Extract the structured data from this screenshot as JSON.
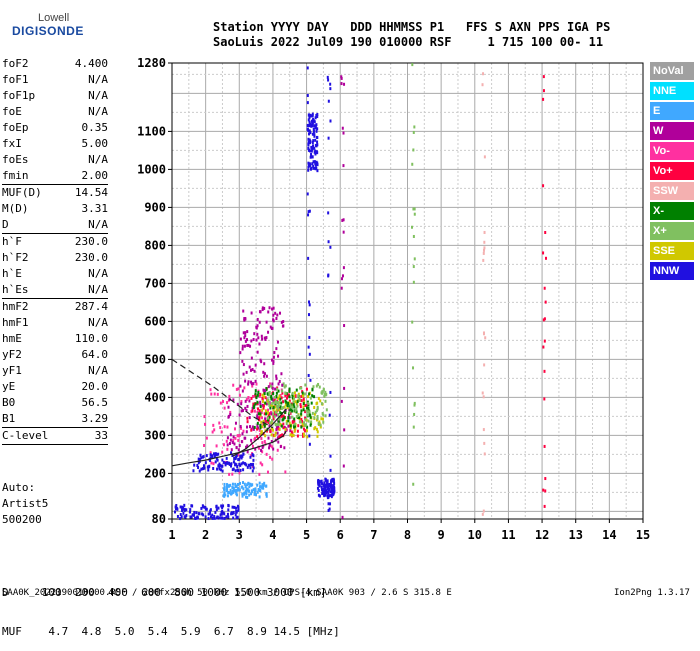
{
  "logo": {
    "top": "Lowell",
    "bottom": "DIGISONDE"
  },
  "header": {
    "line1": "Station YYYY DAY   DDD HHMMSS P1   FFS S AXN PPS IGA PS",
    "line2": "SaoLuis 2022 Jul09 190 010000 RSF     1 715 100 00- 11"
  },
  "params": [
    {
      "k": "foF2",
      "v": "4.400"
    },
    {
      "k": "foF1",
      "v": "N/A"
    },
    {
      "k": "foF1p",
      "v": "N/A"
    },
    {
      "k": "foE",
      "v": "N/A"
    },
    {
      "k": "foEp",
      "v": "0.35"
    },
    {
      "k": "fxI",
      "v": "5.00"
    },
    {
      "k": "foEs",
      "v": "N/A"
    },
    {
      "k": "fmin",
      "v": "2.00"
    },
    {
      "sep": true
    },
    {
      "k": "MUF(D)",
      "v": "14.54"
    },
    {
      "k": "M(D)",
      "v": "3.31"
    },
    {
      "k": "D",
      "v": "N/A"
    },
    {
      "sep": true
    },
    {
      "k": "h`F",
      "v": "230.0"
    },
    {
      "k": "h`F2",
      "v": "230.0"
    },
    {
      "k": "h`E",
      "v": "N/A"
    },
    {
      "k": "h`Es",
      "v": "N/A"
    },
    {
      "sep": true
    },
    {
      "k": "hmF2",
      "v": "287.4"
    },
    {
      "k": "hmF1",
      "v": "N/A"
    },
    {
      "k": "hmE",
      "v": "110.0"
    },
    {
      "k": "yF2",
      "v": "64.0"
    },
    {
      "k": "yF1",
      "v": "N/A"
    },
    {
      "k": "yE",
      "v": "20.0"
    },
    {
      "k": "B0",
      "v": "56.5"
    },
    {
      "k": "B1",
      "v": "3.29"
    },
    {
      "sep": true
    },
    {
      "k": "C-level",
      "v": "33"
    },
    {
      "sep": true
    }
  ],
  "auto": {
    "line1": "Auto:",
    "line2": "Artist5",
    "line3": "500200"
  },
  "legend": [
    {
      "label": "NoVal",
      "color": "#a0a0a0"
    },
    {
      "label": "NNE",
      "color": "#00e0ff"
    },
    {
      "label": "E",
      "color": "#40a8ff"
    },
    {
      "label": "W",
      "color": "#b0009a"
    },
    {
      "label": "Vo-",
      "color": "#ff30a0"
    },
    {
      "label": "Vo+",
      "color": "#ff0040"
    },
    {
      "label": "SSW",
      "color": "#f4b0b0"
    },
    {
      "label": "X-",
      "color": "#008000"
    },
    {
      "label": "X+",
      "color": "#80c060"
    },
    {
      "label": "SSE",
      "color": "#d0c800"
    },
    {
      "label": "NNW",
      "color": "#2010e0"
    }
  ],
  "bottom_table": {
    "d_row": "D     100  200  400  600  800 1000 1500 3000 [km]",
    "muf_row": "MUF    4.7  4.8  5.0  5.4  5.9  6.7  8.9 14.5 [MHz]"
  },
  "footer": {
    "left": "SAA0K_2022190010000.RSF / 280fx256h 50 kHz 5.0 km / DPS-4 SAA0K 903 / 2.6 S 315.8 E",
    "right": "Ion2Png 1.3.17"
  },
  "chart_data": {
    "type": "scatter",
    "xlim": [
      1,
      15
    ],
    "ylim": [
      80,
      1280
    ],
    "x_ticks": [
      1,
      2,
      3,
      4,
      5,
      6,
      7,
      8,
      9,
      10,
      11,
      12,
      13,
      14,
      15
    ],
    "y_ticks": [
      80,
      200,
      300,
      400,
      500,
      600,
      700,
      800,
      900,
      1000,
      1100,
      1280
    ],
    "grid": true,
    "clusters": [
      {
        "f": [
          1.9,
          4.4
        ],
        "h": [
          200,
          440
        ],
        "color": "#ff30a0"
      },
      {
        "f": [
          2.6,
          4.5
        ],
        "h": [
          260,
          400
        ],
        "color": "#b0009a"
      },
      {
        "f": [
          3.2,
          5.0
        ],
        "h": [
          300,
          430
        ],
        "color": "#ff0040"
      },
      {
        "f": [
          3.6,
          5.5
        ],
        "h": [
          300,
          420
        ],
        "color": "#d0c800"
      },
      {
        "f": [
          3.4,
          5.2
        ],
        "h": [
          320,
          430
        ],
        "color": "#008000"
      },
      {
        "f": [
          3.8,
          5.6
        ],
        "h": [
          330,
          440
        ],
        "color": "#80c060"
      },
      {
        "f": [
          1.6,
          3.4
        ],
        "h": [
          210,
          260
        ],
        "color": "#2010e0"
      },
      {
        "f": [
          1.0,
          3.0
        ],
        "h": [
          85,
          120
        ],
        "color": "#2010e0"
      },
      {
        "f": [
          2.5,
          3.8
        ],
        "h": [
          140,
          180
        ],
        "color": "#40a8ff"
      },
      {
        "f": [
          3.0,
          4.3
        ],
        "h": [
          420,
          640
        ],
        "color": "#b0009a"
      },
      {
        "f": [
          5.0,
          5.3
        ],
        "h": [
          1000,
          1150
        ],
        "color": "#2010e0"
      },
      {
        "f": [
          5.3,
          5.8
        ],
        "h": [
          140,
          190
        ],
        "color": "#2010e0"
      }
    ],
    "lines": [
      {
        "name": "profile",
        "style": "solid",
        "points": [
          [
            1,
            220
          ],
          [
            1.5,
            228
          ],
          [
            2,
            235
          ],
          [
            2.5,
            245
          ],
          [
            3,
            255
          ],
          [
            3.5,
            268
          ],
          [
            4,
            282
          ],
          [
            4.3,
            298
          ],
          [
            4.4,
            312
          ]
        ]
      },
      {
        "name": "trace",
        "style": "solid",
        "points": [
          [
            2.8,
            245
          ],
          [
            3.2,
            265
          ],
          [
            3.6,
            295
          ],
          [
            4.0,
            330
          ],
          [
            4.4,
            370
          ]
        ]
      },
      {
        "name": "trace-x",
        "style": "dashed",
        "points": [
          [
            1.0,
            500
          ],
          [
            1.6,
            465
          ],
          [
            2.2,
            430
          ],
          [
            2.8,
            390
          ],
          [
            3.4,
            350
          ],
          [
            4.0,
            320
          ]
        ]
      }
    ]
  }
}
